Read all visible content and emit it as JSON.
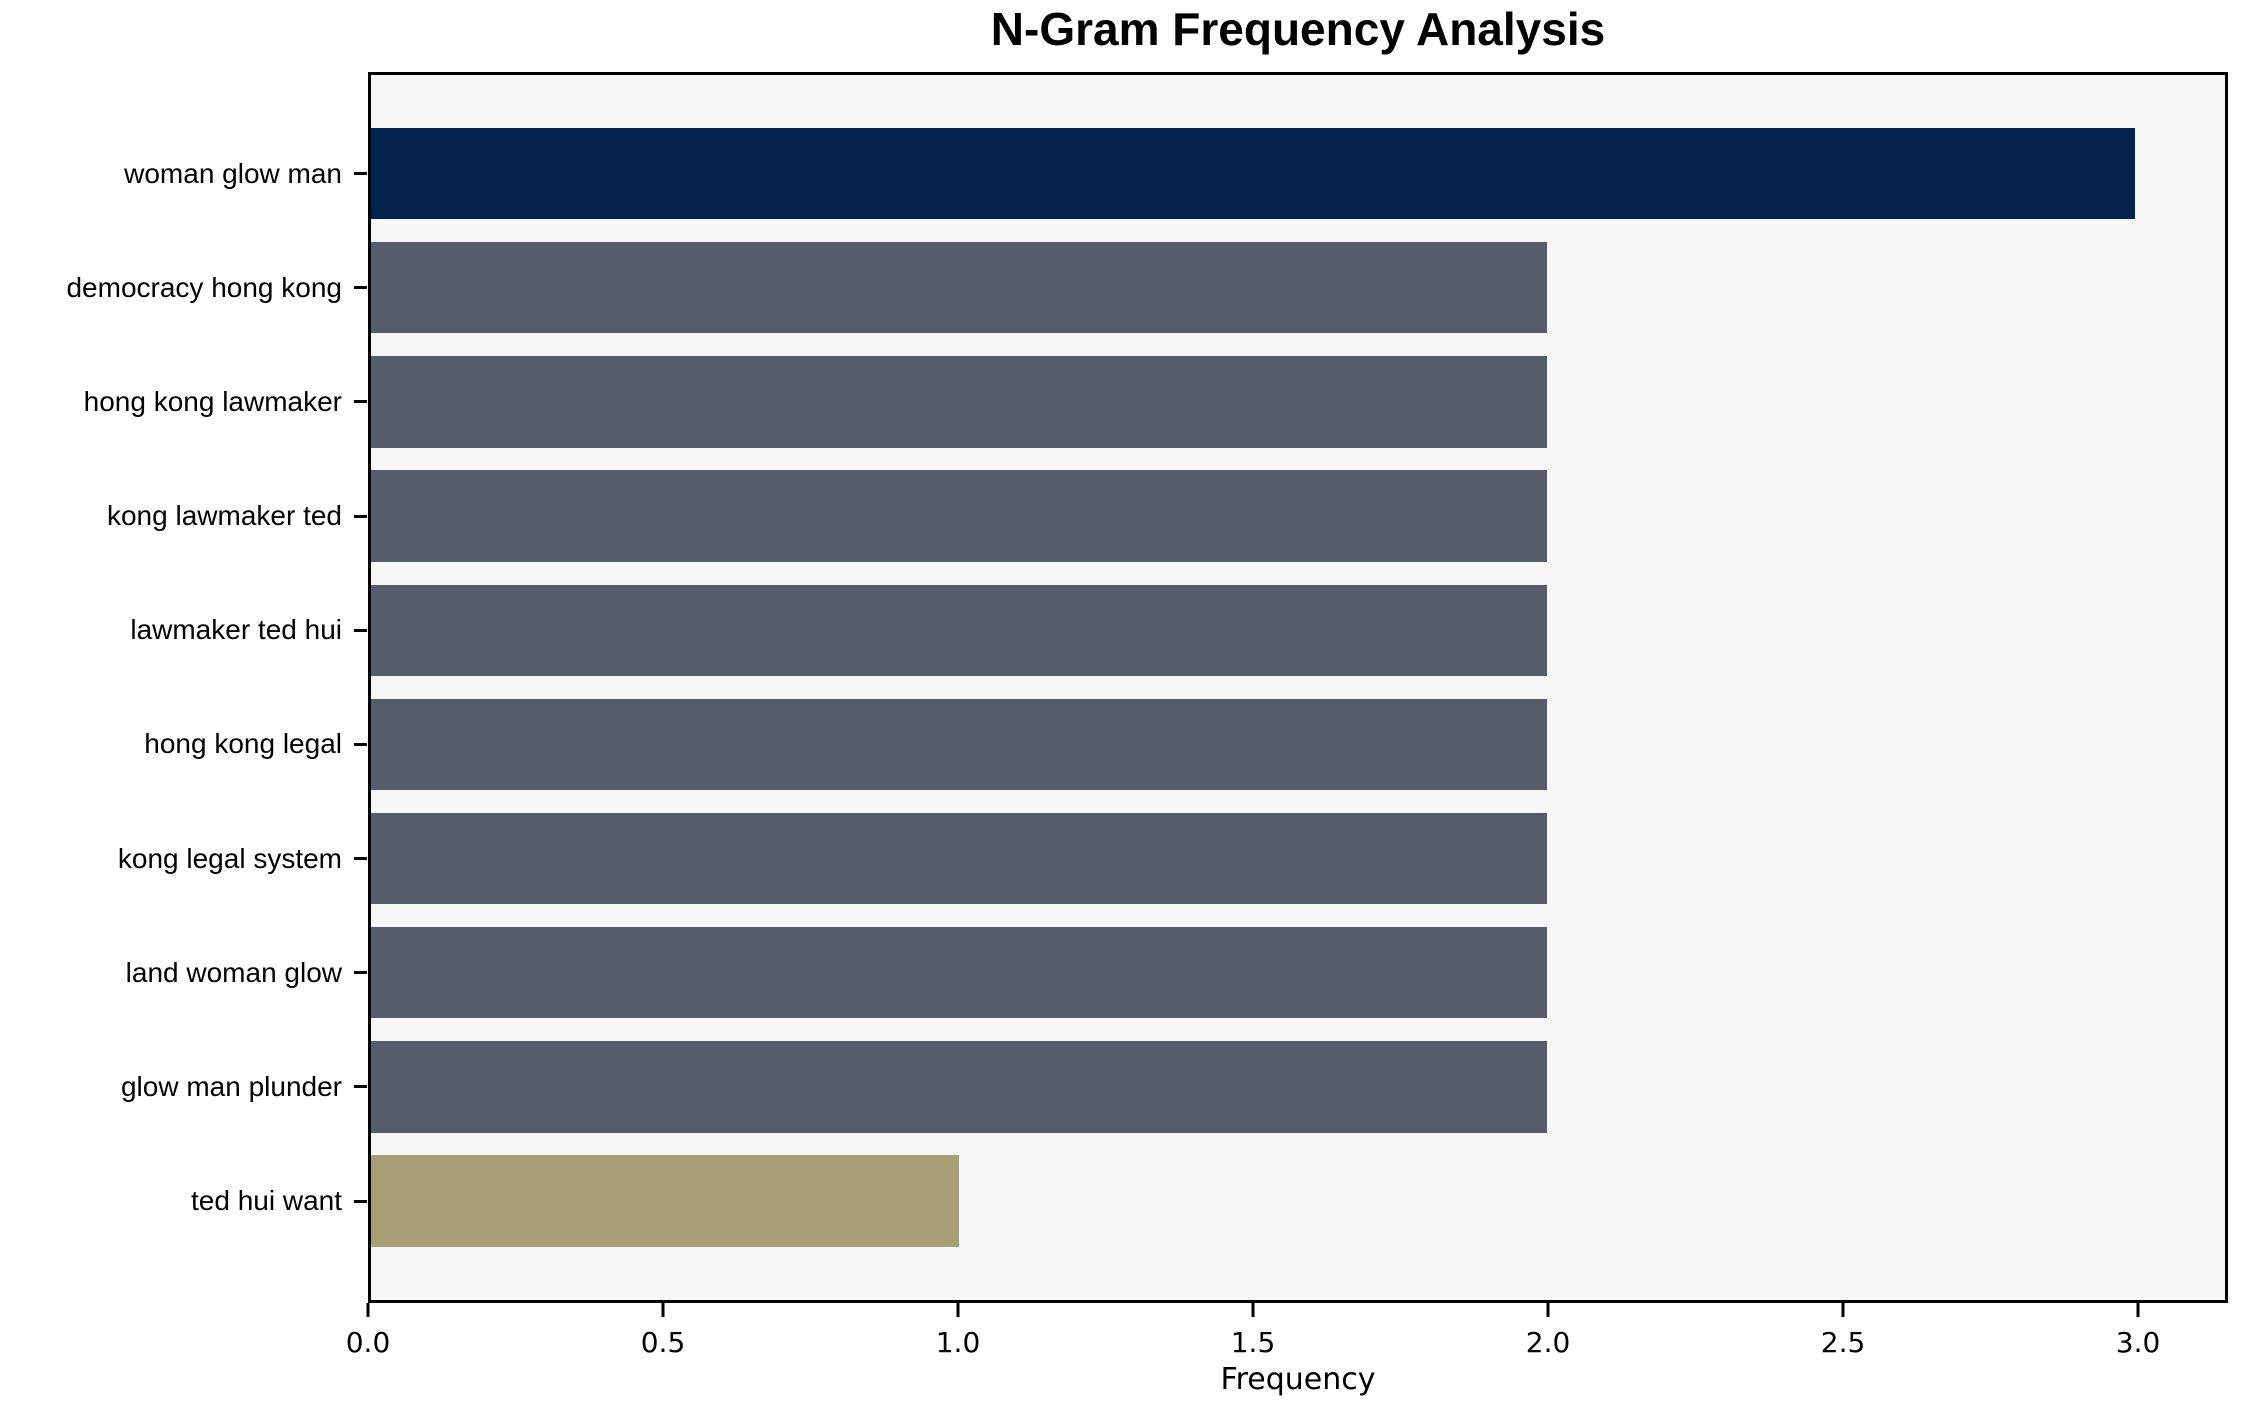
{
  "chart_data": {
    "type": "bar",
    "orientation": "horizontal",
    "title": "N-Gram Frequency Analysis",
    "xlabel": "Frequency",
    "ylabel": "",
    "categories": [
      "woman glow man",
      "democracy hong kong",
      "hong kong lawmaker",
      "kong lawmaker ted",
      "lawmaker ted hui",
      "hong kong legal",
      "kong legal system",
      "land woman glow",
      "glow man plunder",
      "ted hui want"
    ],
    "values": [
      3,
      2,
      2,
      2,
      2,
      2,
      2,
      2,
      2,
      1
    ],
    "bar_colors": [
      "#02234d",
      "#565c6b",
      "#565c6b",
      "#565c6b",
      "#565c6b",
      "#565c6b",
      "#565c6b",
      "#565c6b",
      "#565c6b",
      "#a89e73"
    ],
    "xlim": [
      0,
      3.1525
    ],
    "xticks": {
      "values": [
        0,
        0.5,
        1.0,
        1.5,
        2.0,
        2.5,
        3.0
      ],
      "labels": [
        "0.0",
        "0.5",
        "1.0",
        "1.5",
        "2.0",
        "2.5",
        "3.0"
      ]
    },
    "grid": false,
    "legend": null,
    "colors": {
      "plot_background": "#f7f7f8",
      "figure_background": "#ffffff",
      "axis": "#000000",
      "text": "#000000"
    }
  }
}
